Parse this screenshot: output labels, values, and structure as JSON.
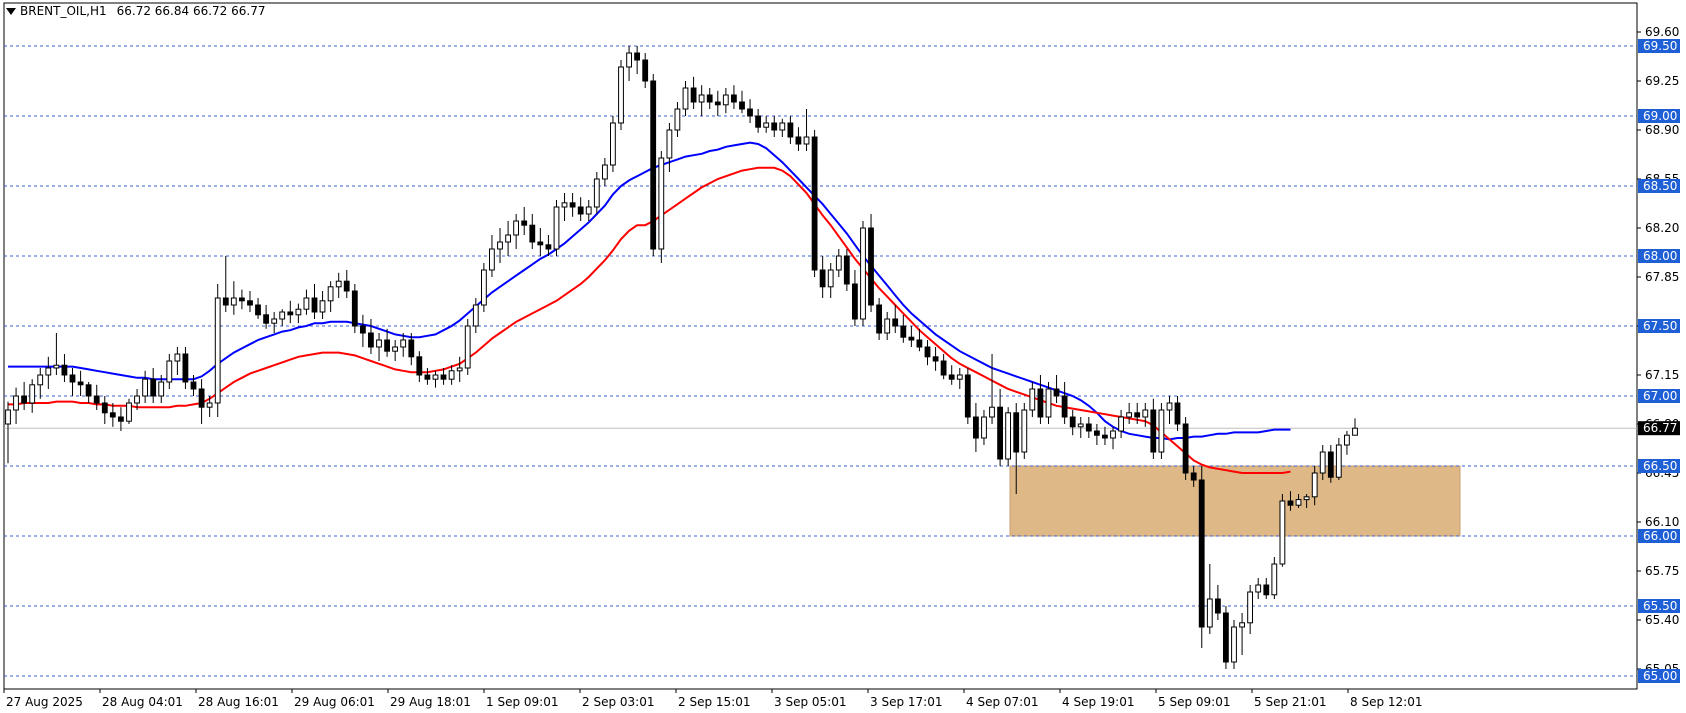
{
  "header": {
    "symbol": "BRENT_OIL,H1",
    "ohlc": "66.72 66.84 66.72 66.77"
  },
  "colors": {
    "ma_fast": "#ff0000",
    "ma_slow": "#0000ff",
    "zone": "#deb887",
    "level_line": "#3a5fcd",
    "label_bg": "#1e5fd6",
    "price_line": "#c0c0c0"
  },
  "chart_data": {
    "type": "candlestick",
    "timeframe": "H1",
    "y_axis": {
      "ticks": [
        69.6,
        69.25,
        68.9,
        68.55,
        68.2,
        67.85,
        67.5,
        67.15,
        66.8,
        66.45,
        66.1,
        65.75,
        65.4,
        65.05
      ],
      "tick_labels": [
        "69.60",
        "69.25",
        "68.90",
        "68.55",
        "68.20",
        "67.85",
        "67.50",
        "67.15",
        "66.80",
        "66.45",
        "66.10",
        "65.75",
        "65.40",
        "65.05"
      ],
      "ylim": [
        64.97,
        69.72
      ]
    },
    "levels": [
      {
        "value": 69.5,
        "label": "69.50"
      },
      {
        "value": 69.0,
        "label": "69.00"
      },
      {
        "value": 68.5,
        "label": "68.50"
      },
      {
        "value": 68.0,
        "label": "68.00"
      },
      {
        "value": 67.5,
        "label": "67.50"
      },
      {
        "value": 67.0,
        "label": "67.00"
      },
      {
        "value": 66.5,
        "label": "66.50"
      },
      {
        "value": 66.0,
        "label": "66.00"
      },
      {
        "value": 65.5,
        "label": "65.50"
      },
      {
        "value": 65.0,
        "label": "65.00"
      }
    ],
    "current_price": {
      "value": 66.77,
      "label": "66.77"
    },
    "zone": {
      "low": 66.0,
      "high": 66.5
    },
    "x_axis": {
      "tick_labels": [
        "27 Aug 2025",
        "28 Aug 04:01",
        "28 Aug 16:01",
        "29 Aug 06:01",
        "29 Aug 18:01",
        "1 Sep 09:01",
        "2 Sep 03:01",
        "2 Sep 15:01",
        "3 Sep 05:01",
        "3 Sep 17:01",
        "4 Sep 07:01",
        "4 Sep 19:01",
        "5 Sep 09:01",
        "5 Sep 21:01",
        "8 Sep 12:01"
      ]
    },
    "candles_ohlc": [
      [
        66.8,
        66.96,
        66.52,
        66.9
      ],
      [
        66.9,
        67.06,
        66.8,
        67.0
      ],
      [
        67.0,
        67.1,
        66.9,
        66.95
      ],
      [
        66.95,
        67.12,
        66.88,
        67.08
      ],
      [
        67.08,
        67.2,
        66.98,
        67.15
      ],
      [
        67.15,
        67.28,
        67.05,
        67.2
      ],
      [
        67.2,
        67.45,
        67.15,
        67.22
      ],
      [
        67.22,
        67.3,
        67.1,
        67.15
      ],
      [
        67.15,
        67.2,
        67.0,
        67.1
      ],
      [
        67.1,
        67.18,
        67.0,
        67.08
      ],
      [
        67.08,
        67.1,
        66.95,
        67.0
      ],
      [
        67.0,
        67.08,
        66.9,
        66.95
      ],
      [
        66.95,
        67.0,
        66.8,
        66.88
      ],
      [
        66.88,
        66.95,
        66.78,
        66.85
      ],
      [
        66.85,
        66.92,
        66.75,
        66.82
      ],
      [
        66.82,
        66.98,
        66.8,
        66.95
      ],
      [
        66.95,
        67.05,
        66.9,
        67.0
      ],
      [
        67.0,
        67.18,
        66.95,
        67.12
      ],
      [
        67.12,
        67.2,
        66.95,
        67.0
      ],
      [
        67.0,
        67.15,
        66.95,
        67.1
      ],
      [
        67.1,
        67.3,
        67.05,
        67.25
      ],
      [
        67.25,
        67.35,
        67.15,
        67.3
      ],
      [
        67.3,
        67.35,
        67.05,
        67.1
      ],
      [
        67.1,
        67.15,
        67.0,
        67.05
      ],
      [
        67.05,
        67.12,
        66.8,
        66.92
      ],
      [
        66.92,
        67.0,
        66.85,
        66.95
      ],
      [
        66.95,
        67.8,
        66.85,
        67.7
      ],
      [
        67.7,
        68.0,
        67.6,
        67.65
      ],
      [
        67.65,
        67.82,
        67.58,
        67.7
      ],
      [
        67.7,
        67.76,
        67.62,
        67.68
      ],
      [
        67.68,
        67.75,
        67.6,
        67.65
      ],
      [
        67.65,
        67.7,
        67.55,
        67.58
      ],
      [
        67.58,
        67.65,
        67.48,
        67.52
      ],
      [
        67.52,
        67.6,
        67.45,
        67.55
      ],
      [
        67.55,
        67.62,
        67.5,
        67.6
      ],
      [
        67.6,
        67.68,
        67.52,
        67.58
      ],
      [
        67.58,
        67.66,
        67.52,
        67.62
      ],
      [
        67.62,
        67.76,
        67.58,
        67.7
      ],
      [
        67.7,
        67.8,
        67.55,
        67.6
      ],
      [
        67.6,
        67.75,
        67.55,
        67.68
      ],
      [
        67.68,
        67.82,
        67.6,
        67.78
      ],
      [
        67.78,
        67.88,
        67.7,
        67.82
      ],
      [
        67.82,
        67.9,
        67.7,
        67.75
      ],
      [
        67.75,
        67.8,
        67.45,
        67.5
      ],
      [
        67.5,
        67.58,
        67.35,
        67.45
      ],
      [
        67.45,
        67.55,
        67.3,
        67.35
      ],
      [
        67.35,
        67.45,
        67.25,
        67.4
      ],
      [
        67.4,
        67.48,
        67.28,
        67.32
      ],
      [
        67.32,
        67.4,
        67.25,
        67.35
      ],
      [
        67.35,
        67.45,
        67.28,
        67.4
      ],
      [
        67.4,
        67.45,
        67.22,
        67.28
      ],
      [
        67.28,
        67.32,
        67.1,
        67.15
      ],
      [
        67.15,
        67.2,
        67.08,
        67.12
      ],
      [
        67.12,
        67.18,
        67.06,
        67.15
      ],
      [
        67.15,
        67.2,
        67.08,
        67.12
      ],
      [
        67.12,
        67.22,
        67.08,
        67.18
      ],
      [
        67.18,
        67.28,
        67.1,
        67.2
      ],
      [
        67.2,
        67.55,
        67.15,
        67.5
      ],
      [
        67.5,
        67.7,
        67.45,
        67.65
      ],
      [
        67.65,
        67.95,
        67.6,
        67.9
      ],
      [
        67.9,
        68.15,
        67.85,
        68.05
      ],
      [
        68.05,
        68.2,
        67.95,
        68.1
      ],
      [
        68.1,
        68.25,
        68.0,
        68.15
      ],
      [
        68.15,
        68.3,
        68.05,
        68.25
      ],
      [
        68.25,
        68.35,
        68.15,
        68.22
      ],
      [
        68.22,
        68.3,
        68.05,
        68.1
      ],
      [
        68.1,
        68.2,
        68.0,
        68.08
      ],
      [
        68.08,
        68.15,
        68.0,
        68.05
      ],
      [
        68.05,
        68.4,
        68.0,
        68.35
      ],
      [
        68.35,
        68.45,
        68.25,
        68.38
      ],
      [
        68.38,
        68.45,
        68.28,
        68.35
      ],
      [
        68.35,
        68.42,
        68.25,
        68.3
      ],
      [
        68.3,
        68.4,
        68.25,
        68.35
      ],
      [
        68.35,
        68.6,
        68.3,
        68.55
      ],
      [
        68.55,
        68.7,
        68.5,
        68.65
      ],
      [
        68.65,
        69.0,
        68.6,
        68.95
      ],
      [
        68.95,
        69.4,
        68.9,
        69.35
      ],
      [
        69.35,
        69.5,
        69.25,
        69.45
      ],
      [
        69.45,
        69.5,
        69.3,
        69.4
      ],
      [
        69.4,
        69.45,
        69.2,
        69.25
      ],
      [
        69.25,
        69.3,
        68.0,
        68.05
      ],
      [
        68.05,
        68.75,
        67.95,
        68.7
      ],
      [
        68.7,
        68.95,
        68.6,
        68.9
      ],
      [
        68.9,
        69.1,
        68.85,
        69.05
      ],
      [
        69.05,
        69.25,
        69.0,
        69.2
      ],
      [
        69.2,
        69.28,
        69.05,
        69.1
      ],
      [
        69.1,
        69.22,
        69.0,
        69.15
      ],
      [
        69.15,
        69.2,
        69.05,
        69.1
      ],
      [
        69.1,
        69.18,
        69.0,
        69.08
      ],
      [
        69.08,
        69.2,
        69.02,
        69.15
      ],
      [
        69.15,
        69.22,
        69.05,
        69.1
      ],
      [
        69.1,
        69.18,
        69.02,
        69.05
      ],
      [
        69.05,
        69.12,
        68.95,
        69.0
      ],
      [
        69.0,
        69.05,
        68.88,
        68.92
      ],
      [
        68.92,
        69.0,
        68.88,
        68.95
      ],
      [
        68.95,
        69.0,
        68.85,
        68.9
      ],
      [
        68.9,
        68.98,
        68.85,
        68.95
      ],
      [
        68.95,
        69.0,
        68.8,
        68.85
      ],
      [
        68.85,
        68.92,
        68.75,
        68.8
      ],
      [
        68.8,
        69.05,
        68.75,
        68.85
      ],
      [
        68.85,
        68.9,
        67.85,
        67.9
      ],
      [
        67.9,
        68.0,
        67.7,
        67.78
      ],
      [
        67.78,
        67.95,
        67.7,
        67.9
      ],
      [
        67.9,
        68.05,
        67.85,
        68.0
      ],
      [
        68.0,
        68.05,
        67.75,
        67.8
      ],
      [
        67.8,
        67.9,
        67.5,
        67.55
      ],
      [
        67.55,
        68.25,
        67.5,
        68.2
      ],
      [
        68.2,
        68.3,
        67.6,
        67.65
      ],
      [
        67.65,
        67.7,
        67.4,
        67.45
      ],
      [
        67.45,
        67.6,
        67.4,
        67.55
      ],
      [
        67.55,
        67.65,
        67.45,
        67.5
      ],
      [
        67.5,
        67.58,
        67.38,
        67.42
      ],
      [
        67.42,
        67.5,
        67.35,
        67.4
      ],
      [
        67.4,
        67.48,
        67.32,
        67.35
      ],
      [
        67.35,
        67.4,
        67.22,
        67.28
      ],
      [
        67.28,
        67.35,
        67.18,
        67.25
      ],
      [
        67.25,
        67.3,
        67.12,
        67.15
      ],
      [
        67.15,
        67.22,
        67.08,
        67.12
      ],
      [
        67.12,
        67.2,
        67.05,
        67.15
      ],
      [
        67.15,
        67.2,
        66.8,
        66.85
      ],
      [
        66.85,
        66.95,
        66.6,
        66.7
      ],
      [
        66.7,
        66.9,
        66.65,
        66.85
      ],
      [
        66.85,
        67.3,
        66.8,
        66.92
      ],
      [
        66.92,
        67.05,
        66.5,
        66.55
      ],
      [
        66.55,
        66.92,
        66.5,
        66.88
      ],
      [
        66.88,
        66.95,
        66.3,
        66.6
      ],
      [
        66.6,
        66.95,
        66.55,
        66.9
      ],
      [
        66.9,
        67.1,
        66.85,
        67.05
      ],
      [
        67.05,
        67.15,
        66.8,
        66.85
      ],
      [
        66.85,
        67.1,
        66.8,
        67.05
      ],
      [
        67.05,
        67.15,
        66.95,
        67.0
      ],
      [
        67.0,
        67.1,
        66.8,
        66.85
      ],
      [
        66.85,
        66.9,
        66.72,
        66.78
      ],
      [
        66.78,
        66.85,
        66.7,
        66.8
      ],
      [
        66.8,
        66.85,
        66.7,
        66.75
      ],
      [
        66.75,
        66.8,
        66.65,
        66.72
      ],
      [
        66.72,
        66.78,
        66.65,
        66.7
      ],
      [
        66.7,
        66.78,
        66.62,
        66.75
      ],
      [
        66.75,
        66.9,
        66.7,
        66.85
      ],
      [
        66.85,
        66.95,
        66.8,
        66.88
      ],
      [
        66.88,
        66.95,
        66.8,
        66.85
      ],
      [
        66.85,
        66.95,
        66.78,
        66.9
      ],
      [
        66.9,
        66.98,
        66.55,
        66.6
      ],
      [
        66.6,
        66.95,
        66.55,
        66.9
      ],
      [
        66.9,
        67.0,
        66.8,
        66.95
      ],
      [
        66.95,
        67.0,
        66.75,
        66.8
      ],
      [
        66.8,
        66.85,
        66.4,
        66.45
      ],
      [
        66.45,
        66.5,
        66.35,
        66.4
      ],
      [
        66.4,
        66.5,
        65.2,
        65.35
      ],
      [
        65.35,
        65.8,
        65.3,
        65.55
      ],
      [
        65.55,
        65.65,
        65.4,
        65.45
      ],
      [
        65.45,
        65.5,
        65.05,
        65.1
      ],
      [
        65.1,
        65.4,
        65.05,
        65.35
      ],
      [
        65.35,
        65.45,
        65.15,
        65.38
      ],
      [
        65.38,
        65.65,
        65.3,
        65.6
      ],
      [
        65.6,
        65.7,
        65.55,
        65.65
      ],
      [
        65.65,
        65.7,
        65.55,
        65.58
      ],
      [
        65.58,
        65.85,
        65.55,
        65.8
      ],
      [
        65.8,
        66.3,
        65.78,
        66.25
      ],
      [
        66.25,
        66.32,
        66.18,
        66.22
      ],
      [
        66.22,
        66.3,
        66.2,
        66.26
      ],
      [
        66.26,
        66.3,
        66.2,
        66.28
      ],
      [
        66.28,
        66.5,
        66.22,
        66.45
      ],
      [
        66.45,
        66.65,
        66.4,
        66.6
      ],
      [
        66.6,
        66.65,
        66.38,
        66.42
      ],
      [
        66.42,
        66.7,
        66.4,
        66.65
      ],
      [
        66.65,
        66.75,
        66.58,
        66.72
      ],
      [
        66.72,
        66.84,
        66.72,
        66.77
      ]
    ],
    "ma_fast_values": [
      66.94,
      66.94,
      66.95,
      66.95,
      66.95,
      66.95,
      66.96,
      66.96,
      66.96,
      66.95,
      66.95,
      66.94,
      66.94,
      66.93,
      66.93,
      66.93,
      66.92,
      66.92,
      66.92,
      66.92,
      66.92,
      66.93,
      66.93,
      66.94,
      66.95,
      66.98,
      67.02,
      67.06,
      67.1,
      67.13,
      67.16,
      67.18,
      67.2,
      67.22,
      67.24,
      67.26,
      67.28,
      67.29,
      67.3,
      67.31,
      67.31,
      67.31,
      67.3,
      67.29,
      67.27,
      67.25,
      67.23,
      67.21,
      67.19,
      67.18,
      67.17,
      67.17,
      67.17,
      67.18,
      67.19,
      67.21,
      67.23,
      67.27,
      67.31,
      67.36,
      67.41,
      67.45,
      67.49,
      67.53,
      67.56,
      67.59,
      67.62,
      67.65,
      67.68,
      67.72,
      67.76,
      67.8,
      67.85,
      67.91,
      67.97,
      68.04,
      68.12,
      68.18,
      68.22,
      68.22,
      68.25,
      68.29,
      68.33,
      68.37,
      68.41,
      68.45,
      68.49,
      68.52,
      68.55,
      68.57,
      68.59,
      68.61,
      68.62,
      68.63,
      68.63,
      68.63,
      68.61,
      68.57,
      68.51,
      68.45,
      68.37,
      68.29,
      68.22,
      68.14,
      68.06,
      67.98,
      67.91,
      67.84,
      67.77,
      67.71,
      67.65,
      67.59,
      67.53,
      67.47,
      67.42,
      67.37,
      67.32,
      67.27,
      67.23,
      67.2,
      67.17,
      67.14,
      67.11,
      67.08,
      67.05,
      67.03,
      67.01,
      66.99,
      66.97,
      66.95,
      66.93,
      66.92,
      66.91,
      66.9,
      66.89,
      66.88,
      66.87,
      66.86,
      66.85,
      66.84,
      66.83,
      66.82,
      66.79,
      66.74,
      66.69,
      66.64,
      66.59,
      66.54,
      66.51,
      66.49,
      66.48,
      66.47,
      66.46,
      66.45,
      66.45,
      66.45,
      66.45,
      66.45,
      66.45,
      66.46
    ],
    "ma_slow_values": [
      67.21,
      67.21,
      67.21,
      67.21,
      67.21,
      67.21,
      67.21,
      67.21,
      67.21,
      67.2,
      67.19,
      67.18,
      67.17,
      67.16,
      67.15,
      67.14,
      67.13,
      67.13,
      67.12,
      67.12,
      67.12,
      67.12,
      67.12,
      67.12,
      67.14,
      67.18,
      67.23,
      67.27,
      67.31,
      67.34,
      67.37,
      67.4,
      67.42,
      67.44,
      67.46,
      67.47,
      67.49,
      67.5,
      67.52,
      67.52,
      67.53,
      67.53,
      67.53,
      67.52,
      67.51,
      67.5,
      67.48,
      67.46,
      67.44,
      67.43,
      67.42,
      67.42,
      67.43,
      67.44,
      67.47,
      67.5,
      67.54,
      67.59,
      67.64,
      67.69,
      67.74,
      67.78,
      67.82,
      67.86,
      67.9,
      67.94,
      67.98,
      68.01,
      68.05,
      68.09,
      68.14,
      68.19,
      68.24,
      68.3,
      68.36,
      68.44,
      68.5,
      68.54,
      68.57,
      68.6,
      68.63,
      68.65,
      68.67,
      68.69,
      68.71,
      68.72,
      68.73,
      68.75,
      68.76,
      68.78,
      68.79,
      68.8,
      68.81,
      68.8,
      68.77,
      68.72,
      68.67,
      68.61,
      68.55,
      68.49,
      68.43,
      68.37,
      68.3,
      68.23,
      68.16,
      68.08,
      68.0,
      67.93,
      67.86,
      67.79,
      67.72,
      67.65,
      67.59,
      67.54,
      67.49,
      67.44,
      67.4,
      67.36,
      67.32,
      67.29,
      67.26,
      67.23,
      67.2,
      67.18,
      67.16,
      67.14,
      67.12,
      67.1,
      67.08,
      67.06,
      67.04,
      67.02,
      67.0,
      66.97,
      66.93,
      66.88,
      66.82,
      66.78,
      66.75,
      66.73,
      66.72,
      66.71,
      66.7,
      66.7,
      66.69,
      66.7,
      66.7,
      66.71,
      66.71,
      66.72,
      66.73,
      66.73,
      66.74,
      66.74,
      66.74,
      66.74,
      66.75,
      66.76,
      66.76,
      66.76
    ]
  }
}
